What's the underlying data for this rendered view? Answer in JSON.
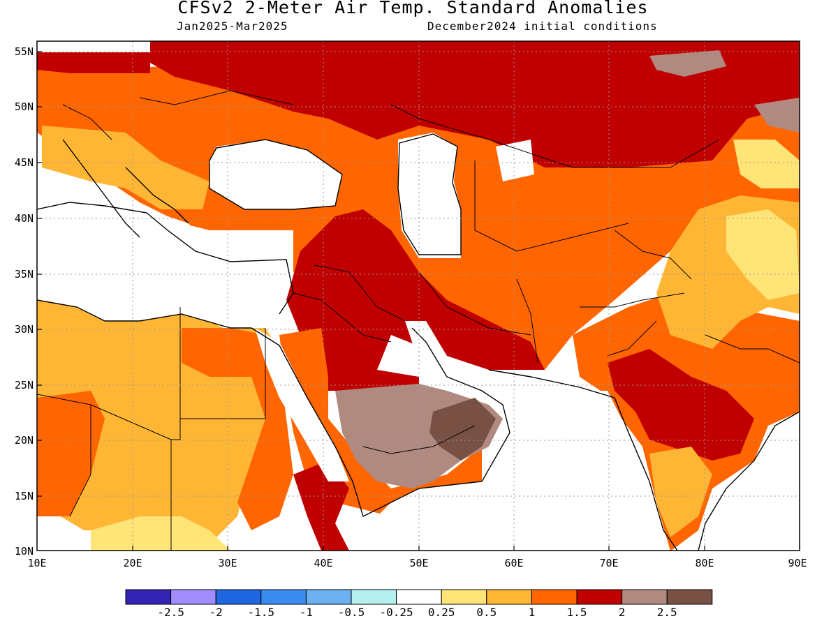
{
  "title": "CFSv2 2-Meter Air Temp. Standard Anomalies",
  "subtitle_left": "Jan2025-Mar2025",
  "subtitle_right": "December2024 initial conditions",
  "lat_labels": [
    "55N",
    "50N",
    "45N",
    "40N",
    "35N",
    "30N",
    "25N",
    "20N",
    "15N",
    "10N"
  ],
  "lon_labels": [
    "10E",
    "20E",
    "30E",
    "40E",
    "50E",
    "60E",
    "70E",
    "80E",
    "90E"
  ],
  "colorbar": {
    "colors": [
      "#3323b4",
      "#a08cff",
      "#1f67e0",
      "#3a8df0",
      "#6cb0f0",
      "#b4f0f0",
      "#ffffff",
      "#ffe477",
      "#ffb634",
      "#ff6500",
      "#c00000",
      "#b08a80",
      "#785044"
    ],
    "labels": [
      "-2.5",
      "-2",
      "-1.5",
      "-1",
      "-0.5",
      "-0.25",
      "0.25",
      "0.5",
      "1",
      "1.5",
      "2",
      "2.5"
    ]
  },
  "legend_colors": {
    "not_shaded": "#ffffff",
    "light_yellow": "#ffe477",
    "yellow_orange": "#ffb634",
    "orange": "#ff6500",
    "dark_red": "#c00000",
    "light_brown": "#b08a80",
    "dark_brown": "#785044"
  }
}
